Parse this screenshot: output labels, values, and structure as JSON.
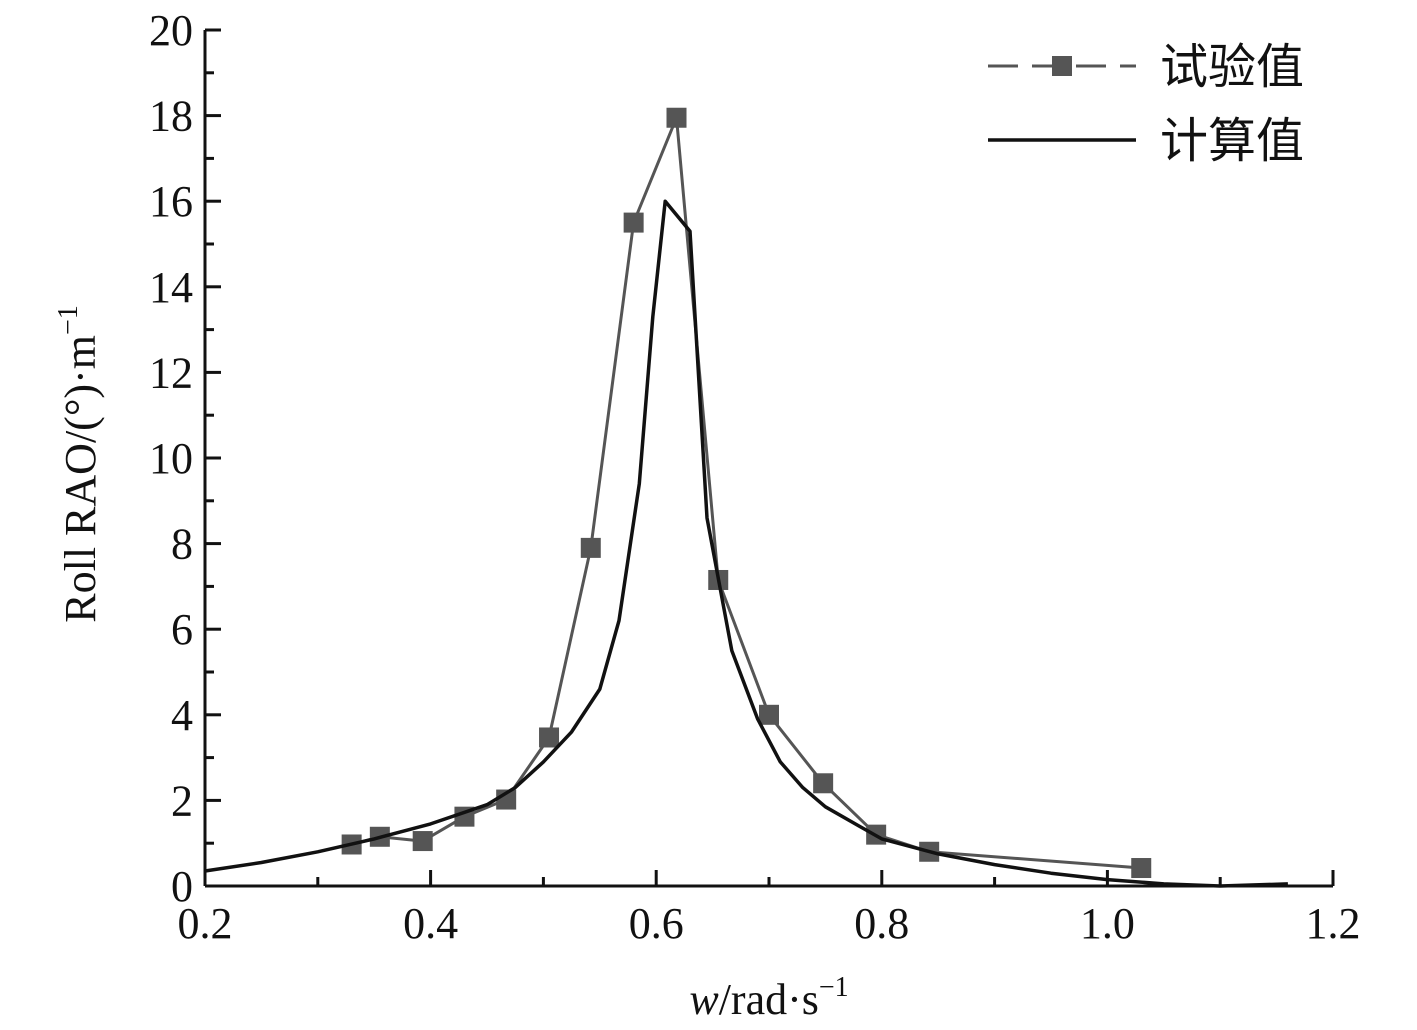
{
  "chart_data": {
    "type": "line",
    "title": "",
    "xlabel_italic": "w",
    "xlabel_rest": "/rad·s",
    "xlabel_sup": "−1",
    "ylabel_main": "Roll RAO/(°)·m",
    "ylabel_sup": "−1",
    "xlim": [
      0.2,
      1.2
    ],
    "ylim": [
      0,
      20
    ],
    "x_ticks": [
      "0.2",
      "0.4",
      "0.6",
      "0.8",
      "1.0",
      "1.2"
    ],
    "y_ticks": [
      "0",
      "2",
      "4",
      "6",
      "8",
      "10",
      "12",
      "14",
      "16",
      "18",
      "20"
    ],
    "grid": false,
    "legend_position": "top-right",
    "series": [
      {
        "name": "试验值",
        "style": "line-square-markers",
        "color": "#555555",
        "x": [
          0.33,
          0.355,
          0.393,
          0.43,
          0.467,
          0.505,
          0.542,
          0.58,
          0.618,
          0.655,
          0.7,
          0.748,
          0.795,
          0.842,
          1.03
        ],
        "y": [
          0.97,
          1.15,
          1.05,
          1.62,
          2.02,
          3.47,
          7.9,
          15.5,
          17.95,
          7.15,
          4.0,
          2.4,
          1.2,
          0.8,
          0.42
        ]
      },
      {
        "name": "计算值",
        "style": "line",
        "color": "#111111",
        "x": [
          0.2,
          0.25,
          0.3,
          0.35,
          0.4,
          0.45,
          0.475,
          0.5,
          0.525,
          0.55,
          0.567,
          0.585,
          0.597,
          0.608,
          0.63,
          0.645,
          0.667,
          0.69,
          0.71,
          0.73,
          0.75,
          0.78,
          0.8,
          0.85,
          0.9,
          0.95,
          1.0,
          1.05,
          1.1,
          1.16
        ],
        "y": [
          0.35,
          0.55,
          0.8,
          1.1,
          1.45,
          1.9,
          2.3,
          2.9,
          3.6,
          4.6,
          6.2,
          9.4,
          13.3,
          16.0,
          15.3,
          8.6,
          5.5,
          3.9,
          2.9,
          2.3,
          1.85,
          1.4,
          1.1,
          0.75,
          0.5,
          0.3,
          0.15,
          0.05,
          0.0,
          0.05
        ]
      }
    ]
  }
}
